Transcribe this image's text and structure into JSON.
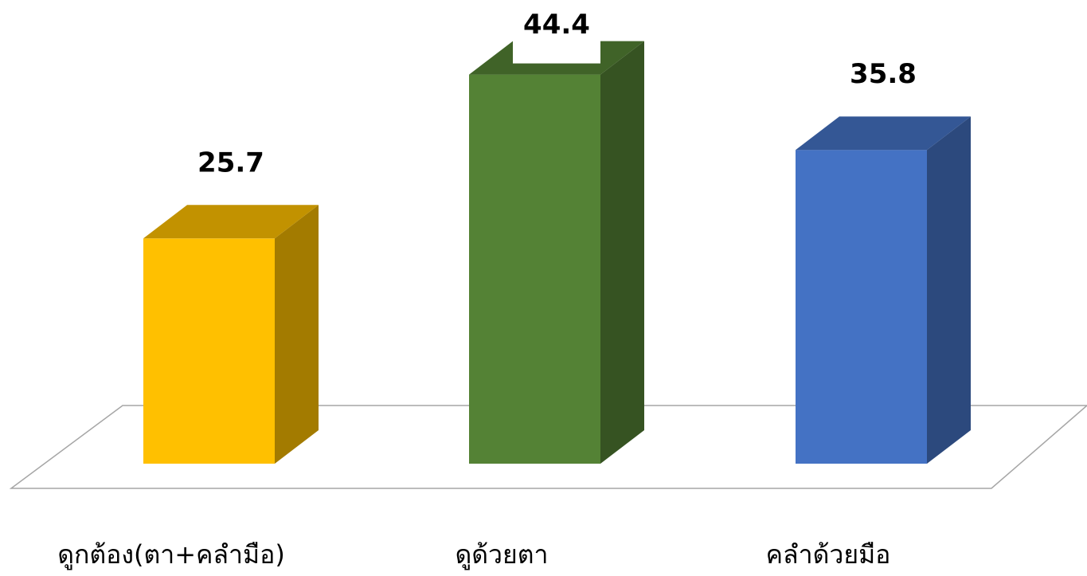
{
  "chart_data": {
    "type": "bar",
    "style": "3d-column",
    "categories": [
      "ดูกต้อง(ตา+คลำมือ)",
      "ดูด้วยตา",
      "คลำด้วยมือ"
    ],
    "values": [
      25.7,
      44.4,
      35.8
    ],
    "value_labels": [
      "25.7",
      "44.4",
      "35.8"
    ],
    "colors": [
      "#FFC000",
      "#548235",
      "#4472C4"
    ],
    "ylim": [
      0,
      45
    ],
    "grid": false,
    "legend": "none"
  }
}
